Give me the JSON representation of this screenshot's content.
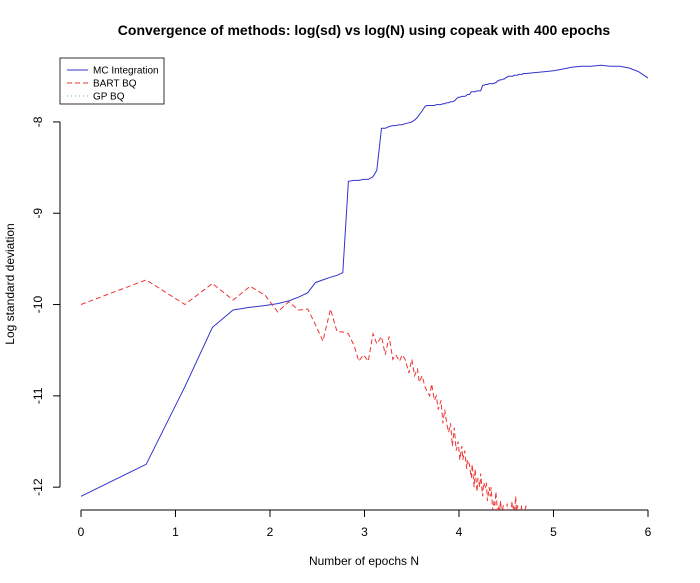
{
  "chart_data": {
    "type": "line",
    "title": "Convergence of methods: log(sd) vs log(N) using copeak with 400 epochs",
    "xlabel": "Number of epochs N",
    "ylabel": "Log standard deviation",
    "xlim": [
      0,
      6
    ],
    "ylim": [
      -12.25,
      -7.3
    ],
    "x_ticks": [
      "0",
      "1",
      "2",
      "3",
      "4",
      "5",
      "6"
    ],
    "y_ticks": [
      "-12",
      "-11",
      "-10",
      "-9",
      "-8"
    ],
    "legend_position": "top-left",
    "series": [
      {
        "name": "MC Integration",
        "color": "#3333cc",
        "style": "solid",
        "x": [
          0,
          0.69,
          1.1,
          1.39,
          1.61,
          1.79,
          1.95,
          2.08,
          2.2,
          2.3,
          2.4,
          2.48,
          2.56,
          2.64,
          2.71,
          2.77,
          2.83,
          2.89,
          2.94,
          2.99,
          3.04,
          3.09,
          3.13,
          3.18,
          3.22,
          3.26,
          3.3,
          3.33,
          3.37,
          3.4,
          3.43,
          3.47,
          3.5,
          3.53,
          3.56,
          3.58,
          3.61,
          3.64,
          3.66,
          3.69,
          3.71,
          3.74,
          3.76,
          3.78,
          3.81,
          3.83,
          3.85,
          3.87,
          3.89,
          3.91,
          3.93,
          3.95,
          3.97,
          3.99,
          4.01,
          4.03,
          4.04,
          4.06,
          4.08,
          4.09,
          4.11,
          4.13,
          4.14,
          4.16,
          4.17,
          4.19,
          4.2,
          4.22,
          4.23,
          4.25,
          4.26,
          4.28,
          4.29,
          4.3,
          4.32,
          4.33,
          4.34,
          4.36,
          4.37,
          4.38,
          4.39,
          4.41,
          4.42,
          4.43,
          4.44,
          4.45,
          4.47,
          4.48,
          4.49,
          4.5,
          4.51,
          4.52,
          4.53,
          4.55,
          4.56,
          4.57,
          4.58,
          4.59,
          4.6,
          4.61,
          4.62,
          4.63,
          4.64,
          4.65,
          4.66,
          4.67,
          4.68,
          4.69,
          4.7,
          4.71,
          4.8,
          4.9,
          5.0,
          5.1,
          5.2,
          5.3,
          5.4,
          5.5,
          5.6,
          5.7,
          5.8,
          5.9,
          6.0
        ],
        "values": [
          -12.1,
          -11.75,
          -10.9,
          -10.25,
          -10.06,
          -10.03,
          -10.01,
          -9.99,
          -9.96,
          -9.92,
          -9.87,
          -9.76,
          -9.73,
          -9.7,
          -9.68,
          -9.65,
          -8.65,
          -8.64,
          -8.64,
          -8.63,
          -8.63,
          -8.6,
          -8.53,
          -8.07,
          -8.07,
          -8.05,
          -8.04,
          -8.04,
          -8.03,
          -8.03,
          -8.02,
          -8.01,
          -8.0,
          -7.98,
          -7.95,
          -7.92,
          -7.88,
          -7.83,
          -7.82,
          -7.82,
          -7.82,
          -7.82,
          -7.81,
          -7.81,
          -7.81,
          -7.8,
          -7.8,
          -7.79,
          -7.79,
          -7.78,
          -7.78,
          -7.77,
          -7.75,
          -7.73,
          -7.73,
          -7.72,
          -7.72,
          -7.72,
          -7.71,
          -7.7,
          -7.7,
          -7.67,
          -7.67,
          -7.67,
          -7.67,
          -7.66,
          -7.66,
          -7.66,
          -7.66,
          -7.6,
          -7.6,
          -7.59,
          -7.59,
          -7.59,
          -7.58,
          -7.58,
          -7.58,
          -7.58,
          -7.58,
          -7.57,
          -7.57,
          -7.55,
          -7.55,
          -7.54,
          -7.54,
          -7.54,
          -7.53,
          -7.53,
          -7.52,
          -7.51,
          -7.51,
          -7.5,
          -7.5,
          -7.5,
          -7.5,
          -7.5,
          -7.49,
          -7.49,
          -7.49,
          -7.49,
          -7.49,
          -7.48,
          -7.48,
          -7.48,
          -7.48,
          -7.48,
          -7.47,
          -7.47,
          -7.47,
          -7.47,
          -7.46,
          -7.45,
          -7.44,
          -7.42,
          -7.4,
          -7.39,
          -7.39,
          -7.38,
          -7.39,
          -7.39,
          -7.41,
          -7.45,
          -7.52
        ]
      },
      {
        "name": "BART BQ",
        "color": "#ee3333",
        "style": "dashed",
        "x": [
          0,
          0.69,
          1.1,
          1.39,
          1.61,
          1.79,
          1.95,
          2.08,
          2.2,
          2.3,
          2.4,
          2.48,
          2.56,
          2.64,
          2.71,
          2.77,
          2.83,
          2.89,
          2.94,
          2.99,
          3.04,
          3.09,
          3.13,
          3.18,
          3.22,
          3.26,
          3.3,
          3.33,
          3.37,
          3.4,
          3.43,
          3.47,
          3.5,
          3.53,
          3.56,
          3.58,
          3.61,
          3.64,
          3.66,
          3.69,
          3.71,
          3.74,
          3.76,
          3.78,
          3.81,
          3.83,
          3.85,
          3.87,
          3.89,
          3.91,
          3.93,
          3.95,
          3.97,
          3.99,
          4.01,
          4.03,
          4.04,
          4.06,
          4.08,
          4.09,
          4.11,
          4.13,
          4.14,
          4.16,
          4.17,
          4.19,
          4.2,
          4.22,
          4.23,
          4.25,
          4.26,
          4.28,
          4.29,
          4.3,
          4.32,
          4.33,
          4.34,
          4.36,
          4.37,
          4.38,
          4.39,
          4.41,
          4.42,
          4.43,
          4.44,
          4.45,
          4.47,
          4.48,
          4.49,
          4.5,
          4.51,
          4.52,
          4.53,
          4.55,
          4.56,
          4.57,
          4.58,
          4.59,
          4.6,
          4.61,
          4.62,
          4.63,
          4.64,
          4.65,
          4.66,
          4.67,
          4.68,
          4.69,
          4.7,
          4.71
        ],
        "values": [
          -10.0,
          -9.73,
          -10.0,
          -9.77,
          -9.95,
          -9.8,
          -9.9,
          -10.08,
          -9.97,
          -10.06,
          -10.05,
          -10.22,
          -10.4,
          -10.05,
          -10.3,
          -10.3,
          -10.32,
          -10.45,
          -10.62,
          -10.55,
          -10.62,
          -10.32,
          -10.43,
          -10.35,
          -10.55,
          -10.35,
          -10.6,
          -10.55,
          -10.62,
          -10.55,
          -10.6,
          -10.75,
          -10.6,
          -10.78,
          -10.7,
          -10.85,
          -10.78,
          -10.9,
          -10.95,
          -11.0,
          -10.87,
          -11.05,
          -11.0,
          -11.15,
          -11.05,
          -11.3,
          -11.15,
          -11.3,
          -11.4,
          -11.3,
          -11.55,
          -11.35,
          -11.6,
          -11.5,
          -11.7,
          -11.55,
          -11.7,
          -11.6,
          -11.8,
          -11.7,
          -11.75,
          -11.9,
          -11.75,
          -12.0,
          -11.8,
          -12.05,
          -11.9,
          -12.0,
          -11.85,
          -12.1,
          -11.95,
          -12.0,
          -11.95,
          -12.15,
          -12.0,
          -12.1,
          -12.0,
          -12.3,
          -12.15,
          -12.2,
          -12.05,
          -12.3,
          -12.2,
          -12.25,
          -12.15,
          -12.3,
          -12.2,
          -12.35,
          -12.25,
          -12.3,
          -12.18,
          -12.3,
          -12.25,
          -12.35,
          -12.15,
          -12.3,
          -12.2,
          -12.25,
          -12.1,
          -12.3,
          -12.2,
          -12.35,
          -12.25,
          -12.3,
          -12.2,
          -12.35,
          -12.25,
          -12.3,
          -12.25,
          -12.2
        ]
      },
      {
        "name": "GP BQ",
        "color": "#66cc66",
        "style": "dotted",
        "x": [],
        "values": []
      }
    ]
  }
}
